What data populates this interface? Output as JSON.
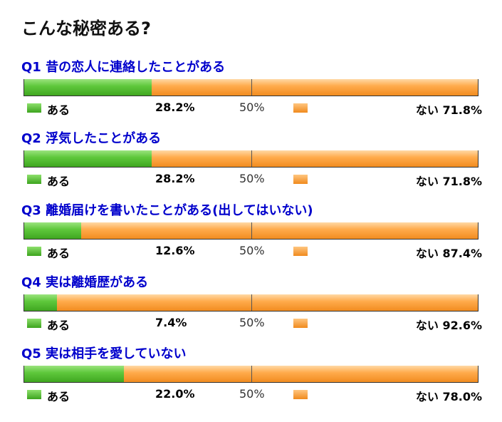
{
  "title": "こんな秘密ある?",
  "legend": {
    "yes": "ある",
    "no": "ない",
    "mid": "50%"
  },
  "colors": {
    "yes": "#3da41e",
    "no": "#f08a1d",
    "question": "#0000cc"
  },
  "chart_data": {
    "type": "bar",
    "orientation": "horizontal-stacked-100",
    "xlim": [
      0,
      100
    ],
    "series": [
      {
        "name": "ある",
        "values": [
          28.2,
          28.2,
          12.6,
          7.4,
          22.0
        ]
      },
      {
        "name": "ない",
        "values": [
          71.8,
          71.8,
          87.4,
          92.6,
          78.0
        ]
      }
    ],
    "questions": [
      {
        "label": "Q1 昔の恋人に連絡したことがある",
        "yes": 28.2,
        "no": 71.8,
        "yes_text": "28.2%",
        "no_text": "71.8%"
      },
      {
        "label": "Q2 浮気したことがある",
        "yes": 28.2,
        "no": 71.8,
        "yes_text": "28.2%",
        "no_text": "71.8%"
      },
      {
        "label": "Q3 離婚届けを書いたことがある(出してはいない)",
        "yes": 12.6,
        "no": 87.4,
        "yes_text": "12.6%",
        "no_text": "87.4%"
      },
      {
        "label": "Q4 実は離婚歴がある",
        "yes": 7.4,
        "no": 92.6,
        "yes_text": "7.4%",
        "no_text": "92.6%"
      },
      {
        "label": "Q5 実は相手を愛していない",
        "yes": 22.0,
        "no": 78.0,
        "yes_text": "22.0%",
        "no_text": "78.0%"
      }
    ]
  }
}
